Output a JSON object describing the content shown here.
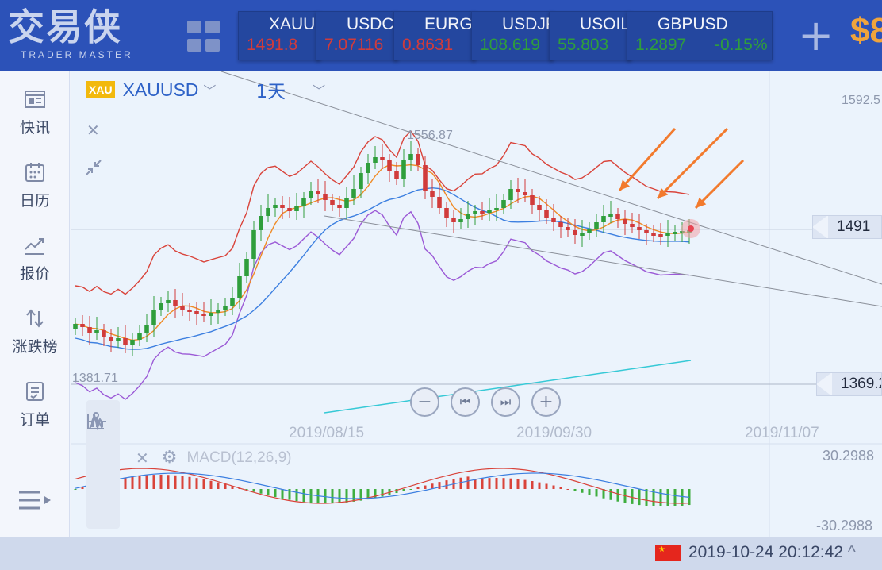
{
  "app": {
    "logo_cn": "交易侠",
    "logo_en": "TRADER MASTER",
    "balance_prefix": "$8"
  },
  "tickers": [
    {
      "symbol": "XAUU",
      "price": "1491.8",
      "change": "",
      "direction": "down"
    },
    {
      "symbol": "USDC",
      "price": "7.07116",
      "change": "",
      "direction": "down"
    },
    {
      "symbol": "EURG",
      "price": "0.8631",
      "change": "",
      "direction": "down"
    },
    {
      "symbol": "USDJF",
      "price": "108.619",
      "change": "",
      "direction": "up"
    },
    {
      "symbol": "USOIL",
      "price": "55.803",
      "change": "",
      "direction": "up"
    },
    {
      "symbol": "GBPUSD",
      "price": "1.2897",
      "change": "-0.15%",
      "direction": "up"
    }
  ],
  "colors": {
    "up": "#2f9e3c",
    "down": "#d13b3b",
    "accent": "#2e62c7",
    "brand": "#2c52b8",
    "arrow": "#f27a2d"
  },
  "sidebar": {
    "items": [
      {
        "label": "快讯",
        "icon": "news-icon"
      },
      {
        "label": "日历",
        "icon": "calendar-icon"
      },
      {
        "label": "报价",
        "icon": "quote-chart-icon"
      },
      {
        "label": "涨跌榜",
        "icon": "sort-arrows-icon"
      },
      {
        "label": "订单",
        "icon": "order-icon"
      }
    ],
    "menu_icon": "menu-icon"
  },
  "chart_header": {
    "badge": "XAU",
    "symbol": "XAUUSD",
    "timeframe": "1天"
  },
  "chart_labels": {
    "high_label": "1556.87",
    "low_label": "1381.71",
    "axis_top": "1592.5",
    "current_tag": "1491",
    "support_tag": "1369.2",
    "macd_top": "30.2988",
    "macd_bottom": "-30.2988",
    "macd_title": "MACD(12,26,9)"
  },
  "chart_data": {
    "type": "candlestick",
    "symbol": "XAUUSD",
    "timeframe": "1天",
    "x_ticks": [
      "2019/08/15",
      "2019/09/30",
      "2019/11/07"
    ],
    "y_marks": {
      "high": 1556.87,
      "low": 1381.71,
      "current": 1491,
      "level": 1369.2
    },
    "macd_range": [
      -30.2988,
      30.2988
    ],
    "indicators": [
      "Bollinger Bands",
      "MACD(12,26,9)"
    ]
  },
  "controls": {
    "zoom_out": "−",
    "prev": "⏮",
    "next": "⏭",
    "zoom_in": "+"
  },
  "footer": {
    "datetime": "2019-10-24 20:12:42",
    "caret": "^"
  }
}
